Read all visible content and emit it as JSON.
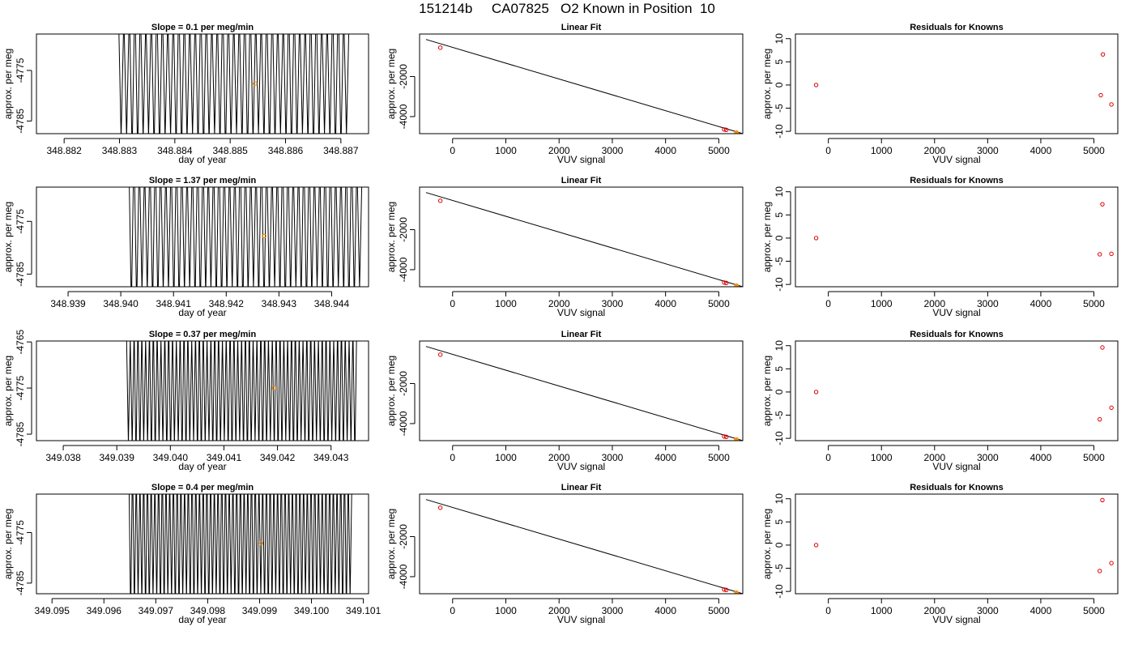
{
  "title": "151214b     CA07825   O2 Known in Position  10",
  "colors": {
    "trace": "#000000",
    "known_point": "#dd0000",
    "current_point": "#ff8c00",
    "fit_line": "#000000"
  },
  "chart_data": [
    {
      "type": "line",
      "row": 0,
      "col": 0,
      "title": "Slope =  0.1  per meg/min",
      "xlabel": "day of year",
      "ylabel": "approx. per meg",
      "xlim": [
        348.8815,
        348.8875
      ],
      "ylim": [
        -4787.5,
        -4767.8
      ],
      "xticks": [
        348.882,
        348.883,
        348.884,
        348.885,
        348.886,
        348.887
      ],
      "xtick_labels": [
        "348.882",
        "348.883",
        "348.884",
        "348.885",
        "348.886",
        "348.887"
      ],
      "yticks": [
        -4775,
        -4785
      ],
      "ytick_labels": [
        "-4775",
        "-4785"
      ],
      "trace": {
        "x_start": 348.88298,
        "x_end": 348.88715,
        "cycles": 42,
        "y_low": -4790,
        "y_high": -4762
      },
      "marker": {
        "x": 348.88545,
        "y": -4777.6
      }
    },
    {
      "type": "scatter",
      "row": 0,
      "col": 1,
      "title": "Linear Fit",
      "xlabel": "VUV signal",
      "ylabel": "approx. per meg",
      "xlim": [
        -620,
        5450
      ],
      "ylim": [
        -4850,
        120
      ],
      "xticks": [
        0,
        1000,
        2000,
        3000,
        4000,
        5000
      ],
      "xtick_labels": [
        "0",
        "1000",
        "2000",
        "3000",
        "4000",
        "5000"
      ],
      "yticks": [
        -2000,
        -4000
      ],
      "ytick_labels": [
        "-2000",
        "-4000"
      ],
      "fit_line": {
        "x": [
          -500,
          5450
        ],
        "y": [
          -150,
          -4850
        ]
      },
      "known_points": [
        {
          "x": -230,
          "y": -560
        },
        {
          "x": 5100,
          "y": -4640
        },
        {
          "x": 5140,
          "y": -4660
        },
        {
          "x": 5330,
          "y": -4790
        }
      ],
      "current_point": {
        "x": 5330,
        "y": -4790
      }
    },
    {
      "type": "scatter",
      "row": 0,
      "col": 2,
      "title": "Residuals for Knowns",
      "xlabel": "VUV signal",
      "ylabel": "approx. per meg",
      "xlim": [
        -620,
        5450
      ],
      "ylim": [
        -10.5,
        11
      ],
      "xticks": [
        0,
        1000,
        2000,
        3000,
        4000,
        5000
      ],
      "xtick_labels": [
        "0",
        "1000",
        "2000",
        "3000",
        "4000",
        "5000"
      ],
      "yticks": [
        -10,
        -5,
        0,
        5,
        10
      ],
      "ytick_labels": [
        "-10",
        "-5",
        "0",
        "5",
        "10"
      ],
      "points": [
        {
          "x": -230,
          "y": 0
        },
        {
          "x": 5130,
          "y": -2.2
        },
        {
          "x": 5170,
          "y": 6.6
        },
        {
          "x": 5330,
          "y": -4.2
        }
      ]
    },
    {
      "type": "line",
      "row": 1,
      "col": 0,
      "title": "Slope =  1.37  per meg/min",
      "xlabel": "day of year",
      "ylabel": "approx. per meg",
      "xlim": [
        348.9384,
        348.9447
      ],
      "ylim": [
        -4787.4,
        -4768.5
      ],
      "xticks": [
        348.939,
        348.94,
        348.941,
        348.942,
        348.943,
        348.944
      ],
      "xtick_labels": [
        "348.939",
        "348.940",
        "348.941",
        "348.942",
        "348.943",
        "348.944"
      ],
      "yticks": [
        -4775,
        -4785
      ],
      "ytick_labels": [
        "-4775",
        "-4785"
      ],
      "trace": {
        "x_start": 348.94015,
        "x_end": 348.94458,
        "cycles": 44,
        "y_low": -4790,
        "y_high": -4762
      },
      "marker": {
        "x": 348.94272,
        "y": -4777.8
      }
    },
    {
      "type": "scatter",
      "row": 1,
      "col": 1,
      "title": "Linear Fit",
      "xlabel": "VUV signal",
      "ylabel": "approx. per meg",
      "xlim": [
        -620,
        5450
      ],
      "ylim": [
        -4850,
        120
      ],
      "xticks": [
        0,
        1000,
        2000,
        3000,
        4000,
        5000
      ],
      "xtick_labels": [
        "0",
        "1000",
        "2000",
        "3000",
        "4000",
        "5000"
      ],
      "yticks": [
        -2000,
        -4000
      ],
      "ytick_labels": [
        "-2000",
        "-4000"
      ],
      "fit_line": {
        "x": [
          -500,
          5450
        ],
        "y": [
          -150,
          -4850
        ]
      },
      "known_points": [
        {
          "x": -230,
          "y": -560
        },
        {
          "x": 5100,
          "y": -4640
        },
        {
          "x": 5140,
          "y": -4660
        },
        {
          "x": 5330,
          "y": -4790
        }
      ],
      "current_point": {
        "x": 5330,
        "y": -4790
      }
    },
    {
      "type": "scatter",
      "row": 1,
      "col": 2,
      "title": "Residuals for Knowns",
      "xlabel": "VUV signal",
      "ylabel": "approx. per meg",
      "xlim": [
        -620,
        5450
      ],
      "ylim": [
        -10.5,
        11
      ],
      "xticks": [
        0,
        1000,
        2000,
        3000,
        4000,
        5000
      ],
      "xtick_labels": [
        "0",
        "1000",
        "2000",
        "3000",
        "4000",
        "5000"
      ],
      "yticks": [
        -10,
        -5,
        0,
        5,
        10
      ],
      "ytick_labels": [
        "-10",
        "-5",
        "0",
        "5",
        "10"
      ],
      "points": [
        {
          "x": -230,
          "y": 0
        },
        {
          "x": 5110,
          "y": -3.5
        },
        {
          "x": 5160,
          "y": 7.3
        },
        {
          "x": 5330,
          "y": -3.4
        }
      ]
    },
    {
      "type": "line",
      "row": 2,
      "col": 0,
      "title": "Slope =  0.37  per meg/min",
      "xlabel": "day of year",
      "ylabel": "approx. per meg",
      "xlim": [
        349.0375,
        349.0437
      ],
      "ylim": [
        -4786.4,
        -4764.8
      ],
      "xticks": [
        349.038,
        349.039,
        349.04,
        349.041,
        349.042,
        349.043
      ],
      "xtick_labels": [
        "349.038",
        "349.039",
        "349.040",
        "349.041",
        "349.042",
        "349.043"
      ],
      "yticks": [
        -4765,
        -4775,
        -4785
      ],
      "ytick_labels": [
        "-4765",
        "-4775",
        "-4785"
      ],
      "trace": {
        "x_start": 349.03918,
        "x_end": 349.04348,
        "cycles": 60,
        "y_low": -4789,
        "y_high": -4762
      },
      "marker": {
        "x": 349.04193,
        "y": -4775.0
      }
    },
    {
      "type": "scatter",
      "row": 2,
      "col": 1,
      "title": "Linear Fit",
      "xlabel": "VUV signal",
      "ylabel": "approx. per meg",
      "xlim": [
        -620,
        5450
      ],
      "ylim": [
        -4850,
        120
      ],
      "xticks": [
        0,
        1000,
        2000,
        3000,
        4000,
        5000
      ],
      "xtick_labels": [
        "0",
        "1000",
        "2000",
        "3000",
        "4000",
        "5000"
      ],
      "yticks": [
        -2000,
        -4000
      ],
      "ytick_labels": [
        "-2000",
        "-4000"
      ],
      "fit_line": {
        "x": [
          -500,
          5450
        ],
        "y": [
          -150,
          -4850
        ]
      },
      "known_points": [
        {
          "x": -230,
          "y": -560
        },
        {
          "x": 5100,
          "y": -4640
        },
        {
          "x": 5140,
          "y": -4660
        },
        {
          "x": 5330,
          "y": -4790
        }
      ],
      "current_point": {
        "x": 5330,
        "y": -4790
      }
    },
    {
      "type": "scatter",
      "row": 2,
      "col": 2,
      "title": "Residuals for Knowns",
      "xlabel": "VUV signal",
      "ylabel": "approx. per meg",
      "xlim": [
        -620,
        5450
      ],
      "ylim": [
        -10.5,
        11
      ],
      "xticks": [
        0,
        1000,
        2000,
        3000,
        4000,
        5000
      ],
      "xtick_labels": [
        "0",
        "1000",
        "2000",
        "3000",
        "4000",
        "5000"
      ],
      "yticks": [
        -10,
        -5,
        0,
        5,
        10
      ],
      "ytick_labels": [
        "-10",
        "-5",
        "0",
        "5",
        "10"
      ],
      "points": [
        {
          "x": -230,
          "y": 0
        },
        {
          "x": 5110,
          "y": -5.9
        },
        {
          "x": 5160,
          "y": 9.6
        },
        {
          "x": 5330,
          "y": -3.4
        }
      ]
    },
    {
      "type": "line",
      "row": 3,
      "col": 0,
      "title": "Slope =  0.4  per meg/min",
      "xlabel": "day of year",
      "ylabel": "approx. per meg",
      "xlim": [
        349.0947,
        349.1011
      ],
      "ylim": [
        -4787.1,
        -4767.4
      ],
      "xticks": [
        349.095,
        349.096,
        349.097,
        349.098,
        349.099,
        349.1,
        349.101
      ],
      "xtick_labels": [
        "349.095",
        "349.096",
        "349.097",
        "349.098",
        "349.099",
        "349.100",
        "349.101"
      ],
      "yticks": [
        -4775,
        -4785
      ],
      "ytick_labels": [
        "-4775",
        "-4785"
      ],
      "trace": {
        "x_start": 349.09648,
        "x_end": 349.10078,
        "cycles": 60,
        "y_low": -4790,
        "y_high": -4762
      },
      "marker": {
        "x": 349.09903,
        "y": -4777.1
      }
    },
    {
      "type": "scatter",
      "row": 3,
      "col": 1,
      "title": "Linear Fit",
      "xlabel": "VUV signal",
      "ylabel": "approx. per meg",
      "xlim": [
        -620,
        5450
      ],
      "ylim": [
        -4850,
        120
      ],
      "xticks": [
        0,
        1000,
        2000,
        3000,
        4000,
        5000
      ],
      "xtick_labels": [
        "0",
        "1000",
        "2000",
        "3000",
        "4000",
        "5000"
      ],
      "yticks": [
        -2000,
        -4000
      ],
      "ytick_labels": [
        "-2000",
        "-4000"
      ],
      "fit_line": {
        "x": [
          -500,
          5450
        ],
        "y": [
          -150,
          -4850
        ]
      },
      "known_points": [
        {
          "x": -230,
          "y": -560
        },
        {
          "x": 5100,
          "y": -4640
        },
        {
          "x": 5140,
          "y": -4660
        },
        {
          "x": 5330,
          "y": -4790
        }
      ],
      "current_point": {
        "x": 5330,
        "y": -4790
      }
    },
    {
      "type": "scatter",
      "row": 3,
      "col": 2,
      "title": "Residuals for Knowns",
      "xlabel": "VUV signal",
      "ylabel": "approx. per meg",
      "xlim": [
        -620,
        5450
      ],
      "ylim": [
        -10.5,
        11
      ],
      "xticks": [
        0,
        1000,
        2000,
        3000,
        4000,
        5000
      ],
      "xtick_labels": [
        "0",
        "1000",
        "2000",
        "3000",
        "4000",
        "5000"
      ],
      "yticks": [
        -10,
        -5,
        0,
        5,
        10
      ],
      "ytick_labels": [
        "-10",
        "-5",
        "0",
        "5",
        "10"
      ],
      "points": [
        {
          "x": -230,
          "y": 0
        },
        {
          "x": 5110,
          "y": -5.6
        },
        {
          "x": 5160,
          "y": 9.7
        },
        {
          "x": 5330,
          "y": -3.9
        }
      ]
    }
  ]
}
